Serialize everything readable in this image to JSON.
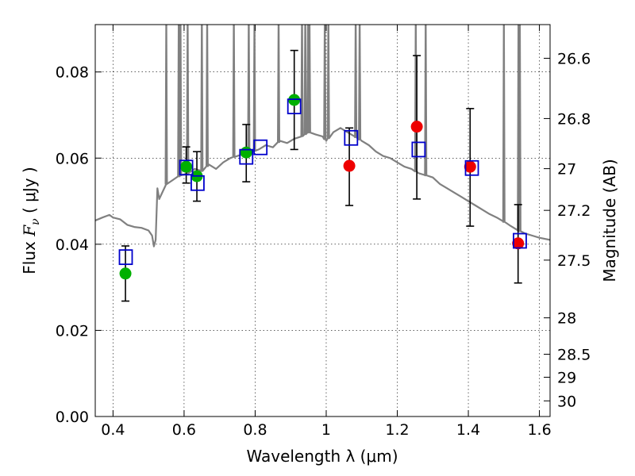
{
  "chart_data": {
    "type": "scatter",
    "xlabel": "Wavelength  λ (μm)",
    "ylabel_prefix": "Flux  ",
    "ylabel_var": "F",
    "ylabel_sub": "ν",
    "ylabel_suffix": "  ( μJy )",
    "y2label": "Magnitude (AB)",
    "xlim": [
      0.35,
      1.63
    ],
    "ylim": [
      0.0,
      0.091
    ],
    "grid": true,
    "x_ticks": [
      {
        "value": 0.4,
        "label": "0.4"
      },
      {
        "value": 0.6,
        "label": "0.6"
      },
      {
        "value": 0.8,
        "label": "0.8"
      },
      {
        "value": 1.0,
        "label": "1"
      },
      {
        "value": 1.2,
        "label": "1.2"
      },
      {
        "value": 1.4,
        "label": "1.4"
      },
      {
        "value": 1.6,
        "label": "1.6"
      }
    ],
    "y_ticks": [
      {
        "value": 0.0,
        "label": "0.00"
      },
      {
        "value": 0.02,
        "label": "0.02"
      },
      {
        "value": 0.04,
        "label": "0.04"
      },
      {
        "value": 0.06,
        "label": "0.06"
      },
      {
        "value": 0.08,
        "label": "0.08"
      }
    ],
    "y2_ticks": [
      {
        "value": 26.6,
        "label": "26.6"
      },
      {
        "value": 26.8,
        "label": "26.8"
      },
      {
        "value": 27.0,
        "label": "27"
      },
      {
        "value": 27.2,
        "label": "27.2"
      },
      {
        "value": 27.5,
        "label": "27.5"
      },
      {
        "value": 28.0,
        "label": "28"
      },
      {
        "value": 28.5,
        "label": "28.5"
      },
      {
        "value": 29.0,
        "label": "29"
      },
      {
        "value": 30.0,
        "label": "30"
      }
    ],
    "model_spectrum": {
      "color": "#808080",
      "x": [
        0.35,
        0.37,
        0.39,
        0.4,
        0.42,
        0.44,
        0.46,
        0.48,
        0.5,
        0.51,
        0.515,
        0.52,
        0.525,
        0.53,
        0.55,
        0.57,
        0.59,
        0.61,
        0.63,
        0.65,
        0.67,
        0.69,
        0.71,
        0.73,
        0.75,
        0.77,
        0.79,
        0.81,
        0.83,
        0.85,
        0.87,
        0.89,
        0.91,
        0.93,
        0.95,
        0.97,
        0.99,
        1.0,
        1.02,
        1.04,
        1.06,
        1.08,
        1.1,
        1.12,
        1.14,
        1.16,
        1.18,
        1.2,
        1.22,
        1.24,
        1.26,
        1.28,
        1.3,
        1.32,
        1.34,
        1.36,
        1.38,
        1.4,
        1.42,
        1.44,
        1.46,
        1.48,
        1.5,
        1.52,
        1.54,
        1.56,
        1.58,
        1.6,
        1.63
      ],
      "y": [
        0.0455,
        0.0462,
        0.0468,
        0.0462,
        0.0458,
        0.0445,
        0.044,
        0.0438,
        0.0432,
        0.042,
        0.0395,
        0.041,
        0.053,
        0.0505,
        0.054,
        0.055,
        0.056,
        0.0565,
        0.0575,
        0.057,
        0.0585,
        0.0575,
        0.059,
        0.06,
        0.0605,
        0.061,
        0.0615,
        0.062,
        0.063,
        0.0625,
        0.064,
        0.0635,
        0.0645,
        0.065,
        0.066,
        0.0655,
        0.065,
        0.064,
        0.066,
        0.067,
        0.066,
        0.065,
        0.064,
        0.063,
        0.0615,
        0.0605,
        0.06,
        0.059,
        0.058,
        0.0575,
        0.0565,
        0.056,
        0.0555,
        0.054,
        0.053,
        0.052,
        0.051,
        0.05,
        0.049,
        0.048,
        0.047,
        0.0462,
        0.0452,
        0.0442,
        0.0432,
        0.0425,
        0.042,
        0.0415,
        0.041
      ]
    },
    "emission_lines": [
      0.55,
      0.585,
      0.59,
      0.61,
      0.65,
      0.665,
      0.74,
      0.782,
      0.798,
      0.866,
      0.932,
      0.941,
      0.949,
      0.953,
      0.996,
      1.006,
      1.083,
      1.094,
      1.252,
      1.28,
      1.5,
      1.541,
      1.545
    ],
    "series": [
      {
        "marker": "circle",
        "color": "#00b000",
        "x": [
          0.435,
          0.606,
          0.636,
          0.775,
          0.91
        ],
        "y": [
          0.0332,
          0.058,
          0.0558,
          0.0613,
          0.0735
        ]
      },
      {
        "marker": "circle",
        "color": "#ee0000",
        "x": [
          1.065,
          1.255,
          1.405,
          1.54
        ],
        "y": [
          0.0582,
          0.0673,
          0.058,
          0.0402
        ]
      },
      {
        "marker": "square-open",
        "color": "#0000cc",
        "x": [
          0.436,
          0.606,
          0.638,
          0.775,
          0.815,
          0.91,
          1.07,
          1.26,
          1.41,
          1.545
        ],
        "y": [
          0.037,
          0.0578,
          0.0542,
          0.0603,
          0.0625,
          0.072,
          0.0647,
          0.062,
          0.0577,
          0.0408
        ]
      }
    ],
    "error_bars": [
      {
        "x": 0.435,
        "low": 0.0268,
        "high": 0.0396
      },
      {
        "x": 0.606,
        "low": 0.0542,
        "high": 0.0626
      },
      {
        "x": 0.636,
        "low": 0.05,
        "high": 0.0615
      },
      {
        "x": 0.775,
        "low": 0.0545,
        "high": 0.0678
      },
      {
        "x": 0.91,
        "low": 0.062,
        "high": 0.085
      },
      {
        "x": 1.065,
        "low": 0.049,
        "high": 0.067
      },
      {
        "x": 1.255,
        "low": 0.0505,
        "high": 0.0838
      },
      {
        "x": 1.405,
        "low": 0.0442,
        "high": 0.0715
      },
      {
        "x": 1.54,
        "low": 0.031,
        "high": 0.0492
      }
    ]
  }
}
